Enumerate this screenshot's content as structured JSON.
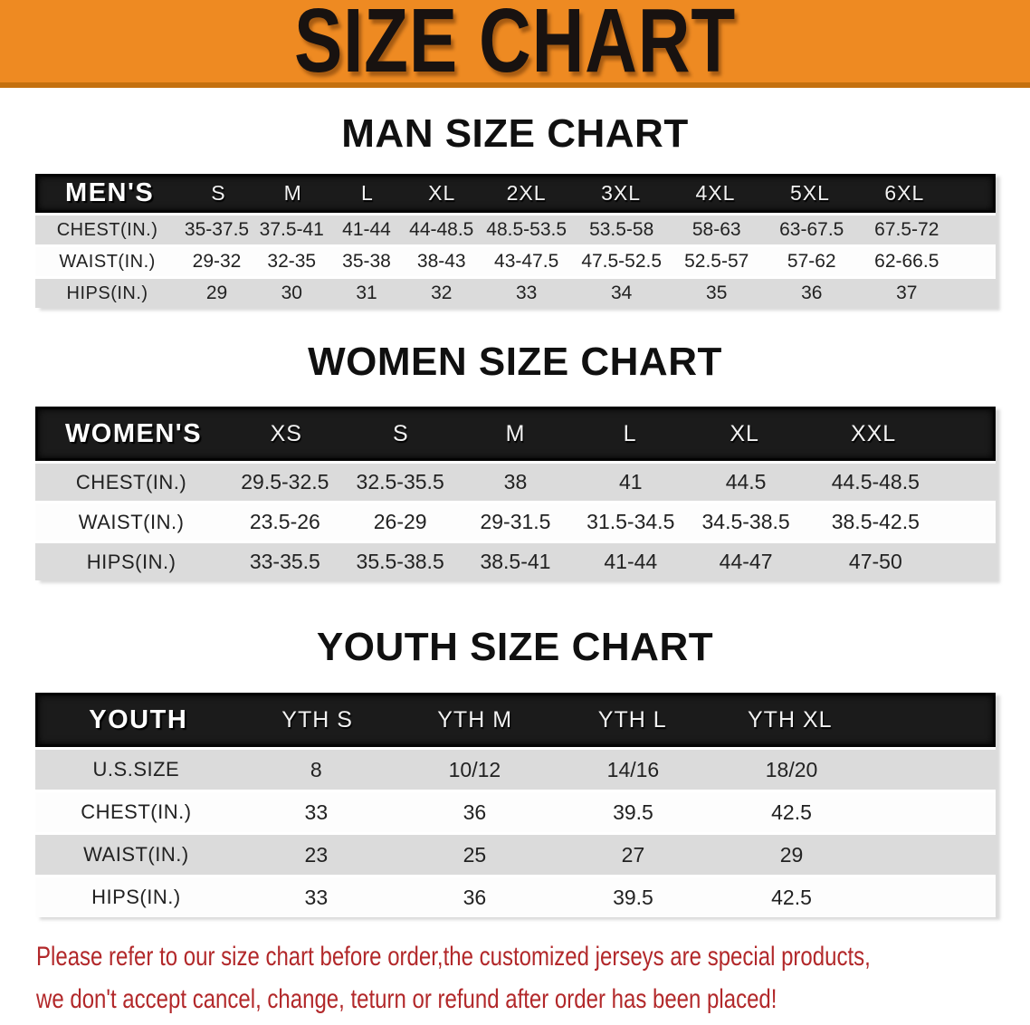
{
  "banner": {
    "title": "SIZE CHART",
    "bg_color": "#EE8A22",
    "border_color": "#C4700F",
    "text_color": "#181210"
  },
  "colors": {
    "table_header_bg": "#1b1b1b",
    "table_header_text": "#ffffff",
    "row_gray": "#DBDBDB",
    "row_white": "#FDFDFD",
    "disclaimer_red": "#B2282A"
  },
  "chart_data": [
    {
      "type": "table",
      "title": "MAN SIZE CHART",
      "header_label": "MEN'S",
      "columns": [
        "S",
        "M",
        "L",
        "XL",
        "2XL",
        "3XL",
        "4XL",
        "5XL",
        "6XL"
      ],
      "rows": [
        {
          "label": "CHEST(IN.)",
          "values": [
            "35-37.5",
            "37.5-41",
            "41-44",
            "44-48.5",
            "48.5-53.5",
            "53.5-58",
            "58-63",
            "63-67.5",
            "67.5-72"
          ]
        },
        {
          "label": "WAIST(IN.)",
          "values": [
            "29-32",
            "32-35",
            "35-38",
            "38-43",
            "43-47.5",
            "47.5-52.5",
            "52.5-57",
            "57-62",
            "62-66.5"
          ]
        },
        {
          "label": "HIPS(IN.)",
          "values": [
            "29",
            "30",
            "31",
            "32",
            "33",
            "34",
            "35",
            "36",
            "37"
          ]
        }
      ]
    },
    {
      "type": "table",
      "title": "WOMEN SIZE CHART",
      "header_label": "WOMEN'S",
      "columns": [
        "XS",
        "S",
        "M",
        "L",
        "XL",
        "XXL"
      ],
      "rows": [
        {
          "label": "CHEST(IN.)",
          "values": [
            "29.5-32.5",
            "32.5-35.5",
            "38",
            "41",
            "44.5",
            "44.5-48.5"
          ]
        },
        {
          "label": "WAIST(IN.)",
          "values": [
            "23.5-26",
            "26-29",
            "29-31.5",
            "31.5-34.5",
            "34.5-38.5",
            "38.5-42.5"
          ]
        },
        {
          "label": "HIPS(IN.)",
          "values": [
            "33-35.5",
            "35.5-38.5",
            "38.5-41",
            "41-44",
            "44-47",
            "47-50"
          ]
        }
      ]
    },
    {
      "type": "table",
      "title": "YOUTH SIZE CHART",
      "header_label": "YOUTH",
      "columns": [
        "YTH S",
        "YTH M",
        "YTH L",
        "YTH XL"
      ],
      "rows": [
        {
          "label": "U.S.SIZE",
          "values": [
            "8",
            "10/12",
            "14/16",
            "18/20"
          ]
        },
        {
          "label": "CHEST(IN.)",
          "values": [
            "33",
            "36",
            "39.5",
            "42.5"
          ]
        },
        {
          "label": "WAIST(IN.)",
          "values": [
            "23",
            "25",
            "27",
            "29"
          ]
        },
        {
          "label": "HIPS(IN.)",
          "values": [
            "33",
            "36",
            "39.5",
            "42.5"
          ]
        }
      ]
    }
  ],
  "disclaimer": {
    "line1": "Please refer to our size chart before order,the customized jerseys are special products,",
    "line2": "we don't accept cancel, change, teturn or refund after order has been placed!"
  }
}
